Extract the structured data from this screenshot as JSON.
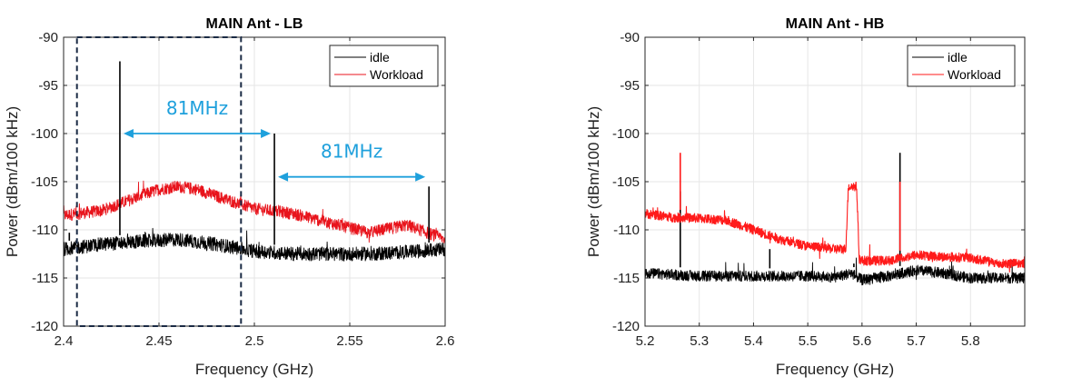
{
  "chart_data": [
    {
      "type": "line",
      "title": "MAIN Ant - LB",
      "xlabel": "Frequency (GHz)",
      "ylabel": "Power (dBm/100 kHz)",
      "xlim": [
        2.4,
        2.6
      ],
      "ylim": [
        -120,
        -90
      ],
      "xticks": [
        "2.4",
        "2.45",
        "2.5",
        "2.55",
        "2.6"
      ],
      "yticks": [
        "-90",
        "-95",
        "-100",
        "-105",
        "-110",
        "-115",
        "-120"
      ],
      "grid": true,
      "legend": "top-right",
      "series": [
        {
          "name": "idle",
          "color": "#000000",
          "x": [
            2.4,
            2.42,
            2.44,
            2.46,
            2.48,
            2.5,
            2.52,
            2.54,
            2.56,
            2.58,
            2.6
          ],
          "y": [
            -112,
            -111.5,
            -111.2,
            -111,
            -111.5,
            -112.2,
            -112.5,
            -112.5,
            -112.5,
            -112.3,
            -112
          ],
          "spikes": [
            [
              2.4295,
              -92.5
            ],
            [
              2.5105,
              -100
            ],
            [
              2.5915,
              -105.5
            ],
            [
              2.403,
              -110.3
            ]
          ]
        },
        {
          "name": "Workload",
          "color": "#e8141c",
          "x": [
            2.4,
            2.42,
            2.44,
            2.45,
            2.46,
            2.47,
            2.48,
            2.5,
            2.52,
            2.54,
            2.56,
            2.58,
            2.6
          ],
          "y": [
            -108.5,
            -108,
            -106.5,
            -105.8,
            -105.5,
            -105.8,
            -106.5,
            -107.8,
            -108.3,
            -109.3,
            -110.3,
            -109.5,
            -111
          ]
        }
      ],
      "annotations": [
        {
          "text": "81MHz",
          "x1": 2.4295,
          "x2": 2.5105,
          "y": -100,
          "text_y": -98
        },
        {
          "text": "81MHz",
          "x1": 2.5105,
          "x2": 2.5915,
          "y": -104.5,
          "text_y": -102.5
        }
      ],
      "highlight_box": {
        "x1": 2.407,
        "x2": 2.493,
        "y1": -120,
        "y2": -90
      }
    },
    {
      "type": "line",
      "title": "MAIN Ant - HB",
      "xlabel": "Frequency (GHz)",
      "ylabel": "Power (dBm/100 kHz)",
      "xlim": [
        5.2,
        5.9
      ],
      "ylim": [
        -120,
        -90
      ],
      "xticks": [
        "5.2",
        "5.3",
        "5.4",
        "5.5",
        "5.6",
        "5.7",
        "5.8"
      ],
      "yticks": [
        "-90",
        "-95",
        "-100",
        "-105",
        "-110",
        "-115",
        "-120"
      ],
      "grid": true,
      "legend": "top-right",
      "series": [
        {
          "name": "idle",
          "color": "#000000",
          "x": [
            5.2,
            5.3,
            5.4,
            5.5,
            5.55,
            5.58,
            5.6,
            5.65,
            5.7,
            5.75,
            5.8,
            5.9
          ],
          "y": [
            -114.5,
            -114.8,
            -114.8,
            -114.8,
            -114.9,
            -114.5,
            -115.2,
            -114.8,
            -114.2,
            -114.5,
            -115,
            -115
          ],
          "spikes": [
            [
              5.265,
              -106
            ],
            [
              5.43,
              -112
            ],
            [
              5.67,
              -102
            ],
            [
              5.585,
              -113.5
            ]
          ]
        },
        {
          "name": "Workload",
          "color": "#ff1a1a",
          "x": [
            5.2,
            5.25,
            5.3,
            5.35,
            5.4,
            5.45,
            5.5,
            5.55,
            5.57,
            5.575,
            5.59,
            5.595,
            5.6,
            5.65,
            5.7,
            5.75,
            5.8,
            5.85,
            5.9
          ],
          "y": [
            -108.3,
            -108.7,
            -108.8,
            -109,
            -110,
            -111,
            -111.7,
            -112,
            -112,
            -105.5,
            -105.5,
            -113,
            -113.2,
            -113.2,
            -112.6,
            -112.8,
            -112.9,
            -113.5,
            -113.5
          ],
          "spikes": [
            [
              5.265,
              -102
            ],
            [
              5.67,
              -105
            ]
          ]
        }
      ]
    }
  ]
}
